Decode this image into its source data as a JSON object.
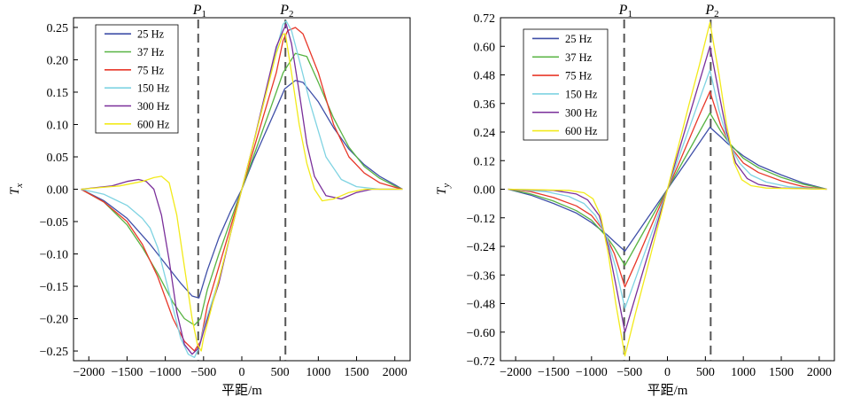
{
  "colors": {
    "25 Hz": "#3f4fa8",
    "37 Hz": "#58b443",
    "75 Hz": "#e8382a",
    "150 Hz": "#7fd3e2",
    "300 Hz": "#7a2f9a",
    "600 Hz": "#f2ea1b",
    "axis": "#000000",
    "marker_line": "#555555"
  },
  "chart_data": [
    {
      "type": "line",
      "panel": "left",
      "ylabel": "T",
      "ylabel_sub": "x",
      "xlabel": "平距/m",
      "xlim": [
        -2200,
        2200
      ],
      "ylim": [
        -0.265,
        0.265
      ],
      "xticks": [
        -2000,
        -1500,
        -1000,
        -500,
        0,
        500,
        1000,
        1500,
        2000
      ],
      "xtick_labels": [
        "−2000",
        "−1500",
        "−1000",
        "−500",
        "0",
        "500",
        "1000",
        "1500",
        "2000"
      ],
      "yticks": [
        -0.25,
        -0.2,
        -0.15,
        -0.1,
        -0.05,
        0,
        0.05,
        0.1,
        0.15,
        0.2,
        0.25
      ],
      "ytick_labels": [
        "−0.25",
        "−0.20",
        "−0.15",
        "−0.10",
        "−0.05",
        "0.00",
        "0.05",
        "0.10",
        "0.15",
        "0.20",
        "0.25"
      ],
      "markers": [
        {
          "label": "P",
          "sub": "1",
          "x": -570
        },
        {
          "label": "P",
          "sub": "2",
          "x": 570
        }
      ],
      "legend_position": "top-left",
      "series": [
        {
          "name": "25 Hz",
          "x": [
            -2100,
            -1800,
            -1500,
            -1200,
            -1000,
            -800,
            -650,
            -560,
            -450,
            -300,
            -150,
            0,
            150,
            300,
            450,
            560,
            700,
            800,
            1000,
            1200,
            1400,
            1600,
            1800,
            2000,
            2100
          ],
          "y": [
            0,
            -0.018,
            -0.045,
            -0.085,
            -0.115,
            -0.145,
            -0.165,
            -0.168,
            -0.125,
            -0.075,
            -0.035,
            0,
            0.045,
            0.085,
            0.125,
            0.155,
            0.168,
            0.165,
            0.135,
            0.095,
            0.062,
            0.038,
            0.02,
            0.007,
            0
          ]
        },
        {
          "name": "37 Hz",
          "x": [
            -2100,
            -1800,
            -1500,
            -1300,
            -1100,
            -900,
            -750,
            -620,
            -540,
            -450,
            -300,
            -150,
            0,
            150,
            300,
            450,
            540,
            700,
            850,
            1000,
            1200,
            1400,
            1600,
            1800,
            2000,
            2100
          ],
          "y": [
            0,
            -0.02,
            -0.055,
            -0.09,
            -0.13,
            -0.175,
            -0.2,
            -0.21,
            -0.2,
            -0.155,
            -0.1,
            -0.05,
            0,
            0.05,
            0.1,
            0.15,
            0.18,
            0.21,
            0.205,
            0.165,
            0.11,
            0.065,
            0.035,
            0.017,
            0.005,
            0
          ]
        },
        {
          "name": "75 Hz",
          "x": [
            -2100,
            -1800,
            -1500,
            -1300,
            -1100,
            -900,
            -750,
            -620,
            -540,
            -450,
            -300,
            -150,
            0,
            150,
            300,
            450,
            540,
            600,
            700,
            800,
            1000,
            1200,
            1400,
            1600,
            1800,
            2000,
            2100
          ],
          "y": [
            0,
            -0.02,
            -0.05,
            -0.085,
            -0.135,
            -0.2,
            -0.235,
            -0.25,
            -0.235,
            -0.18,
            -0.12,
            -0.06,
            0,
            0.06,
            0.12,
            0.18,
            0.23,
            0.245,
            0.25,
            0.24,
            0.18,
            0.1,
            0.05,
            0.025,
            0.01,
            0.003,
            0
          ]
        },
        {
          "name": "150 Hz",
          "x": [
            -2100,
            -1800,
            -1500,
            -1300,
            -1200,
            -1100,
            -950,
            -800,
            -700,
            -620,
            -560,
            -500,
            -300,
            -150,
            0,
            150,
            300,
            450,
            540,
            580,
            650,
            750,
            900,
            1100,
            1300,
            1500,
            1800,
            2100
          ],
          "y": [
            0,
            -0.008,
            -0.025,
            -0.045,
            -0.06,
            -0.09,
            -0.16,
            -0.23,
            -0.255,
            -0.26,
            -0.245,
            -0.215,
            -0.14,
            -0.07,
            0,
            0.07,
            0.14,
            0.215,
            0.255,
            0.26,
            0.245,
            0.2,
            0.13,
            0.05,
            0.015,
            0.004,
            0,
            0
          ]
        },
        {
          "name": "300 Hz",
          "x": [
            -2100,
            -1700,
            -1500,
            -1350,
            -1250,
            -1150,
            -1050,
            -950,
            -850,
            -750,
            -650,
            -560,
            -500,
            -300,
            -150,
            0,
            150,
            300,
            450,
            540,
            580,
            650,
            750,
            850,
            950,
            1100,
            1300,
            1500,
            1700,
            2100
          ],
          "y": [
            0,
            0.005,
            0.012,
            0.015,
            0.012,
            0,
            -0.04,
            -0.11,
            -0.19,
            -0.24,
            -0.255,
            -0.245,
            -0.22,
            -0.145,
            -0.07,
            0,
            0.07,
            0.145,
            0.22,
            0.245,
            0.255,
            0.225,
            0.15,
            0.07,
            0.02,
            -0.01,
            -0.015,
            -0.005,
            0,
            0
          ]
        },
        {
          "name": "600 Hz",
          "x": [
            -2100,
            -1600,
            -1300,
            -1150,
            -1050,
            -950,
            -850,
            -750,
            -650,
            -580,
            -530,
            -500,
            -300,
            -150,
            0,
            150,
            300,
            450,
            540,
            570,
            650,
            750,
            850,
            950,
            1050,
            1200,
            1400,
            1600,
            2100
          ],
          "y": [
            0,
            0.005,
            0.012,
            0.018,
            0.02,
            0.01,
            -0.04,
            -0.12,
            -0.2,
            -0.24,
            -0.25,
            -0.23,
            -0.14,
            -0.07,
            0,
            0.07,
            0.14,
            0.21,
            0.24,
            0.24,
            0.18,
            0.1,
            0.04,
            0,
            -0.018,
            -0.015,
            -0.005,
            0,
            0
          ]
        }
      ]
    },
    {
      "type": "line",
      "panel": "right",
      "ylabel": "T",
      "ylabel_sub": "y",
      "xlabel": "平距/m",
      "xlim": [
        -2200,
        2200
      ],
      "ylim": [
        -0.72,
        0.72
      ],
      "xticks": [
        -2000,
        -1500,
        -1000,
        -500,
        0,
        500,
        1000,
        1500,
        2000
      ],
      "xtick_labels": [
        "−2000",
        "−1500",
        "−1000",
        "−500",
        "0",
        "500",
        "1000",
        "1500",
        "2000"
      ],
      "yticks": [
        -0.72,
        -0.6,
        -0.48,
        -0.36,
        -0.24,
        -0.12,
        0,
        0.12,
        0.24,
        0.36,
        0.48,
        0.6,
        0.72
      ],
      "ytick_labels": [
        "−0.72",
        "−0.60",
        "−0.48",
        "−0.36",
        "−0.24",
        "−0.12",
        "0.00",
        "0.12",
        "0.24",
        "0.36",
        "0.48",
        "0.60",
        "0.72"
      ],
      "markers": [
        {
          "label": "P",
          "sub": "1",
          "x": -570
        },
        {
          "label": "P",
          "sub": "2",
          "x": 570
        }
      ],
      "legend_position": "top-left",
      "series": [
        {
          "name": "25 Hz",
          "x": [
            -2100,
            -1800,
            -1500,
            -1200,
            -1000,
            -800,
            -700,
            -560,
            -420,
            -280,
            -140,
            0,
            140,
            280,
            420,
            560,
            700,
            800,
            1000,
            1200,
            1500,
            1800,
            2100
          ],
          "y": [
            0,
            -0.025,
            -0.06,
            -0.1,
            -0.14,
            -0.19,
            -0.22,
            -0.26,
            -0.195,
            -0.13,
            -0.065,
            0,
            0.065,
            0.13,
            0.195,
            0.26,
            0.22,
            0.19,
            0.14,
            0.1,
            0.06,
            0.025,
            0
          ]
        },
        {
          "name": "37 Hz",
          "x": [
            -2100,
            -1800,
            -1500,
            -1200,
            -1000,
            -800,
            -700,
            -560,
            -420,
            -280,
            -140,
            0,
            140,
            280,
            420,
            560,
            700,
            800,
            1000,
            1200,
            1500,
            1800,
            2100
          ],
          "y": [
            0,
            -0.02,
            -0.05,
            -0.09,
            -0.13,
            -0.2,
            -0.245,
            -0.32,
            -0.24,
            -0.16,
            -0.08,
            0,
            0.08,
            0.16,
            0.24,
            0.32,
            0.245,
            0.2,
            0.13,
            0.09,
            0.05,
            0.02,
            0
          ]
        },
        {
          "name": "75 Hz",
          "x": [
            -2100,
            -1800,
            -1500,
            -1200,
            -1000,
            -850,
            -700,
            -560,
            -420,
            -280,
            -140,
            0,
            140,
            280,
            420,
            560,
            700,
            850,
            1000,
            1200,
            1500,
            1800,
            2100
          ],
          "y": [
            0,
            -0.01,
            -0.035,
            -0.07,
            -0.11,
            -0.17,
            -0.27,
            -0.41,
            -0.31,
            -0.205,
            -0.1,
            0,
            0.1,
            0.205,
            0.31,
            0.41,
            0.27,
            0.17,
            0.11,
            0.07,
            0.035,
            0.01,
            0
          ]
        },
        {
          "name": "150 Hz",
          "x": [
            -2100,
            -1600,
            -1300,
            -1100,
            -950,
            -800,
            -680,
            -560,
            -420,
            -280,
            -140,
            0,
            140,
            280,
            420,
            560,
            680,
            800,
            950,
            1100,
            1300,
            1600,
            2100
          ],
          "y": [
            0,
            -0.01,
            -0.03,
            -0.06,
            -0.11,
            -0.2,
            -0.33,
            -0.5,
            -0.375,
            -0.25,
            -0.125,
            0,
            0.125,
            0.25,
            0.375,
            0.5,
            0.33,
            0.2,
            0.11,
            0.06,
            0.03,
            0.01,
            0
          ]
        },
        {
          "name": "300 Hz",
          "x": [
            -2100,
            -1500,
            -1200,
            -1050,
            -900,
            -780,
            -680,
            -560,
            -420,
            -280,
            -140,
            0,
            140,
            280,
            420,
            560,
            680,
            780,
            900,
            1050,
            1200,
            1500,
            2100
          ],
          "y": [
            0,
            -0.005,
            -0.02,
            -0.045,
            -0.11,
            -0.24,
            -0.4,
            -0.6,
            -0.45,
            -0.3,
            -0.15,
            0,
            0.15,
            0.3,
            0.45,
            0.6,
            0.4,
            0.24,
            0.11,
            0.045,
            0.02,
            0.005,
            0
          ]
        },
        {
          "name": "600 Hz",
          "x": [
            -2100,
            -1300,
            -1100,
            -980,
            -880,
            -780,
            -680,
            -560,
            -420,
            -280,
            -140,
            0,
            140,
            280,
            420,
            560,
            680,
            780,
            880,
            980,
            1100,
            1300,
            2100
          ],
          "y": [
            0,
            -0.005,
            -0.015,
            -0.04,
            -0.11,
            -0.27,
            -0.48,
            -0.7,
            -0.52,
            -0.35,
            -0.175,
            0,
            0.175,
            0.35,
            0.52,
            0.7,
            0.48,
            0.27,
            0.11,
            0.04,
            0.015,
            0.005,
            0
          ]
        }
      ]
    }
  ]
}
